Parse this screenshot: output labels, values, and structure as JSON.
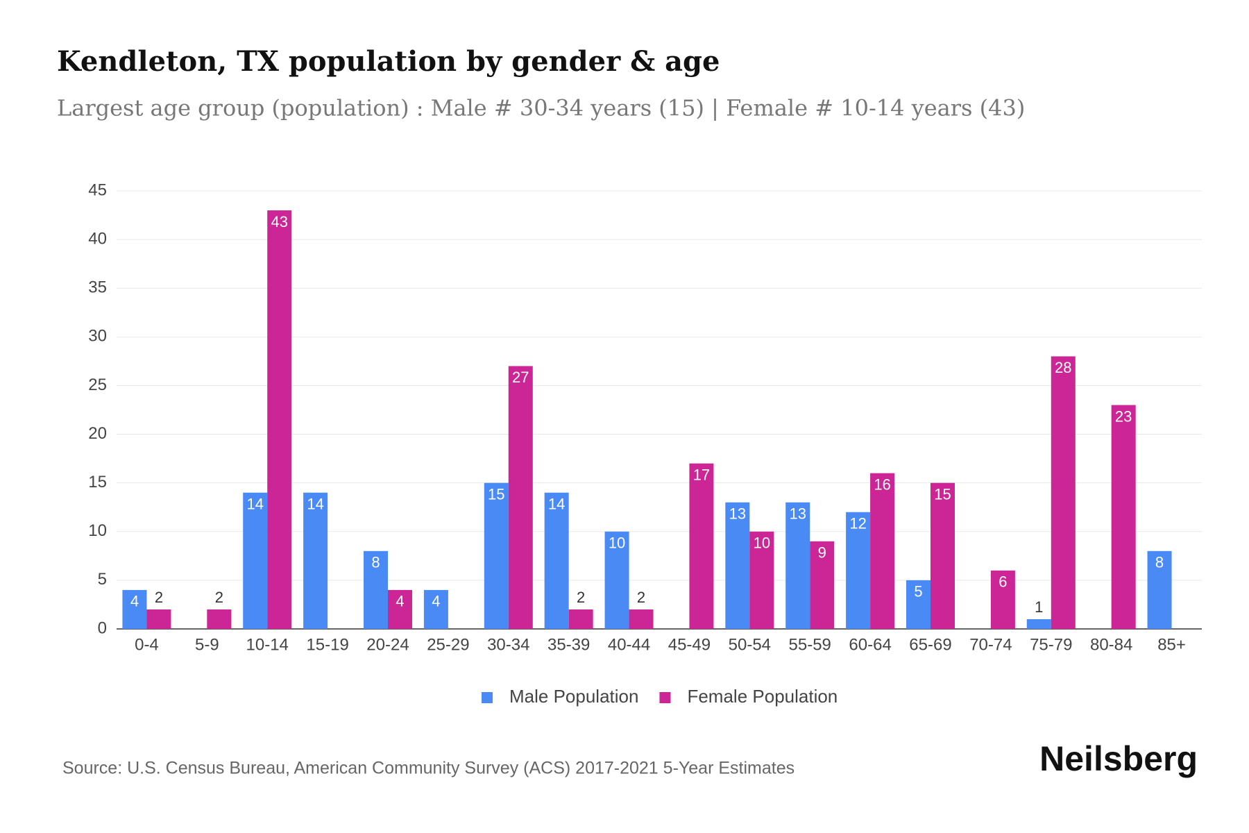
{
  "chart_data": {
    "type": "bar",
    "title": "Kendleton, TX population by gender & age",
    "subtitle": "Largest age group (population) : Male # 30-34 years (15) | Female # 10-14 years (43)",
    "categories": [
      "0-4",
      "5-9",
      "10-14",
      "15-19",
      "20-24",
      "25-29",
      "30-34",
      "35-39",
      "40-44",
      "45-49",
      "50-54",
      "55-59",
      "60-64",
      "65-69",
      "70-74",
      "75-79",
      "80-84",
      "85+"
    ],
    "series": [
      {
        "name": "Male Population",
        "color": "#4a8af4",
        "values": [
          4,
          null,
          14,
          14,
          8,
          4,
          15,
          14,
          10,
          null,
          13,
          13,
          12,
          5,
          null,
          1,
          null,
          8
        ]
      },
      {
        "name": "Female Population",
        "color": "#cc2595",
        "values": [
          2,
          2,
          43,
          null,
          4,
          null,
          27,
          2,
          2,
          17,
          10,
          9,
          16,
          15,
          6,
          28,
          23,
          null
        ]
      }
    ],
    "ylim": [
      0,
      45
    ],
    "yticks": [
      0,
      5,
      10,
      15,
      20,
      25,
      30,
      35,
      40,
      45
    ],
    "grid": true,
    "legend": "bottom",
    "source": "Source: U.S. Census Bureau, American Community Survey (ACS) 2017-2021 5-Year Estimates",
    "brand": "Neilsberg"
  }
}
